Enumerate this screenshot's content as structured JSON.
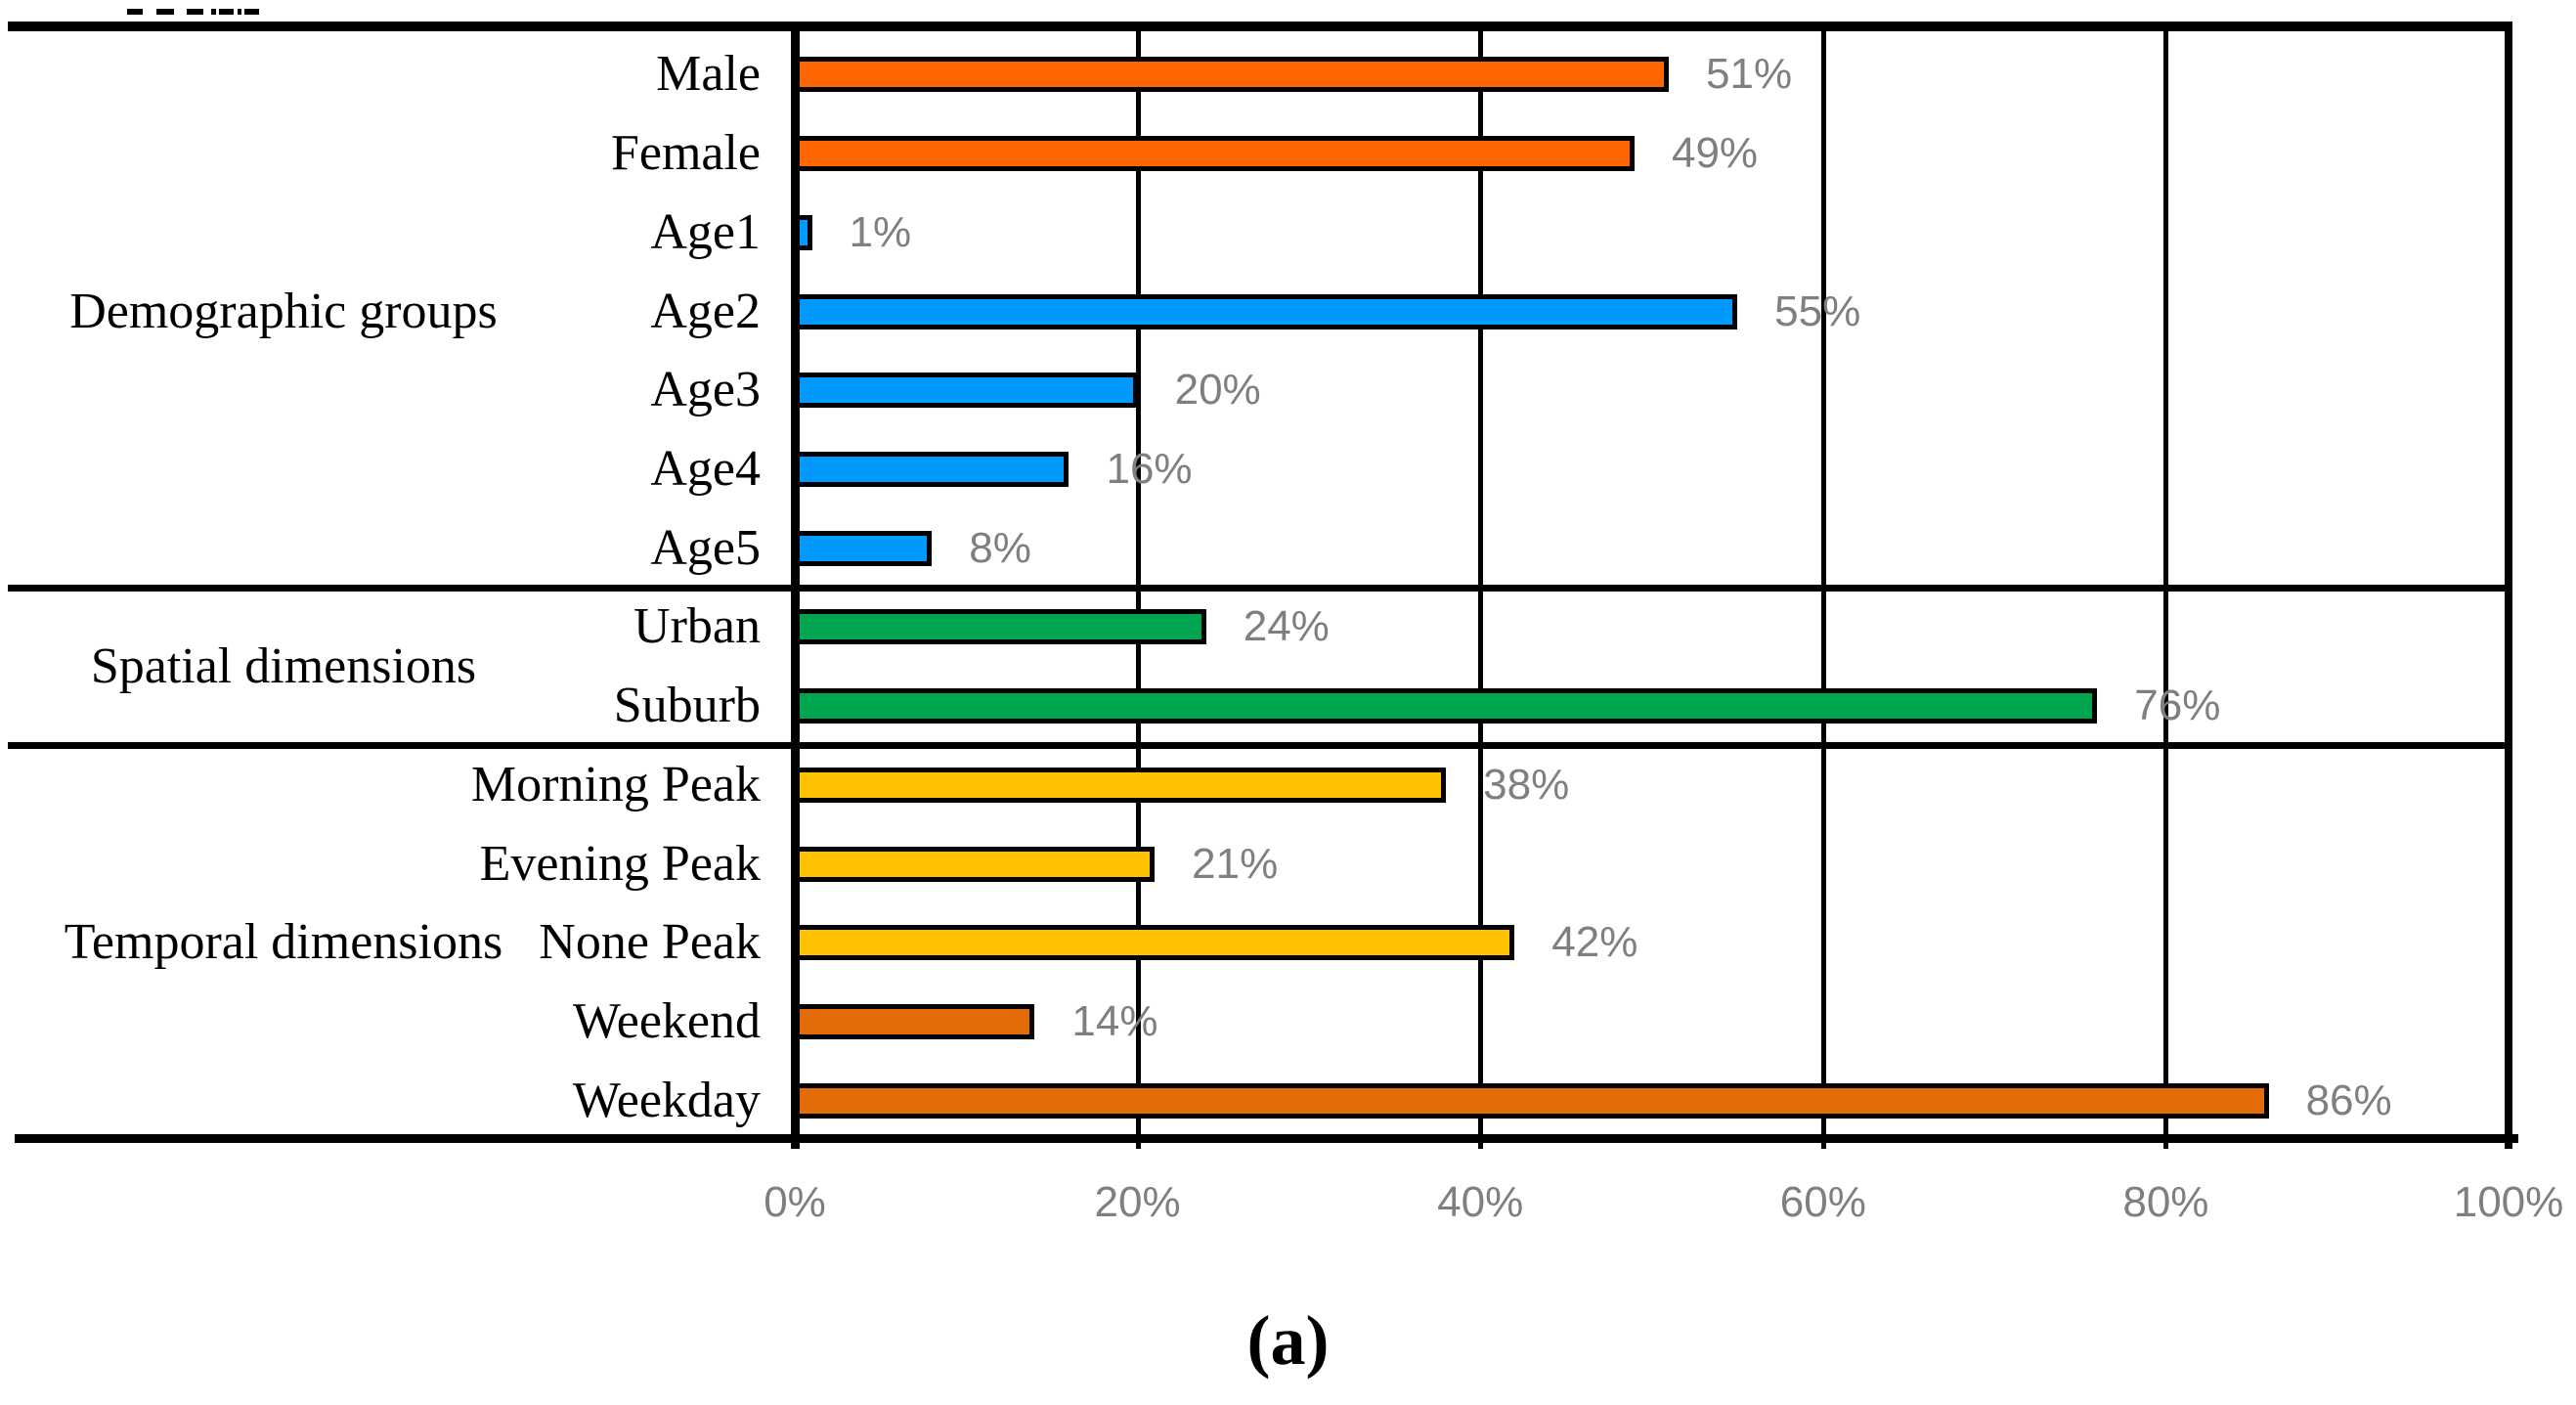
{
  "figure": {
    "caption": "(a)"
  },
  "chart_data": {
    "type": "bar",
    "orientation": "horizontal",
    "title": "",
    "xlabel": "",
    "ylabel": "",
    "value_unit": "%",
    "xlim": [
      0,
      100
    ],
    "grid": true,
    "x_axis_ticks": [
      "0%",
      "20%",
      "40%",
      "60%",
      "80%",
      "100%"
    ],
    "x_axis_tick_values": [
      0,
      20,
      40,
      60,
      80,
      100
    ],
    "groups": [
      {
        "label": "Demographic groups",
        "rows": [
          {
            "category": "Male",
            "value": 51,
            "data_label": "51%",
            "color": "#FF6600"
          },
          {
            "category": "Female",
            "value": 49,
            "data_label": "49%",
            "color": "#FF6600"
          },
          {
            "category": "Age1",
            "value": 1,
            "data_label": "1%",
            "color": "#0099FF"
          },
          {
            "category": "Age2",
            "value": 55,
            "data_label": "55%",
            "color": "#0099FF"
          },
          {
            "category": "Age3",
            "value": 20,
            "data_label": "20%",
            "color": "#0099FF"
          },
          {
            "category": "Age4",
            "value": 16,
            "data_label": "16%",
            "color": "#0099FF"
          },
          {
            "category": "Age5",
            "value": 8,
            "data_label": "8%",
            "color": "#0099FF"
          }
        ]
      },
      {
        "label": "Spatial dimensions",
        "rows": [
          {
            "category": "Urban",
            "value": 24,
            "data_label": "24%",
            "color": "#00A550"
          },
          {
            "category": "Suburb",
            "value": 76,
            "data_label": "76%",
            "color": "#00A550"
          }
        ]
      },
      {
        "label": "Temporal dimensions",
        "rows": [
          {
            "category": "Morning Peak",
            "value": 38,
            "data_label": "38%",
            "color": "#FFC000"
          },
          {
            "category": "Evening Peak",
            "value": 21,
            "data_label": "21%",
            "color": "#FFC000"
          },
          {
            "category": "None Peak",
            "value": 42,
            "data_label": "42%",
            "color": "#FFC000"
          },
          {
            "category": "Weekend",
            "value": 14,
            "data_label": "14%",
            "color": "#E36C09"
          },
          {
            "category": "Weekday",
            "value": 86,
            "data_label": "86%",
            "color": "#E36C09"
          }
        ]
      }
    ],
    "style": {
      "data_label_color": "#7F7F7F",
      "axis_tick_color": "#7F7F7F",
      "bar_border_color": "#000000",
      "grid_color": "#000000"
    },
    "legend": null,
    "caption": "(a)"
  }
}
